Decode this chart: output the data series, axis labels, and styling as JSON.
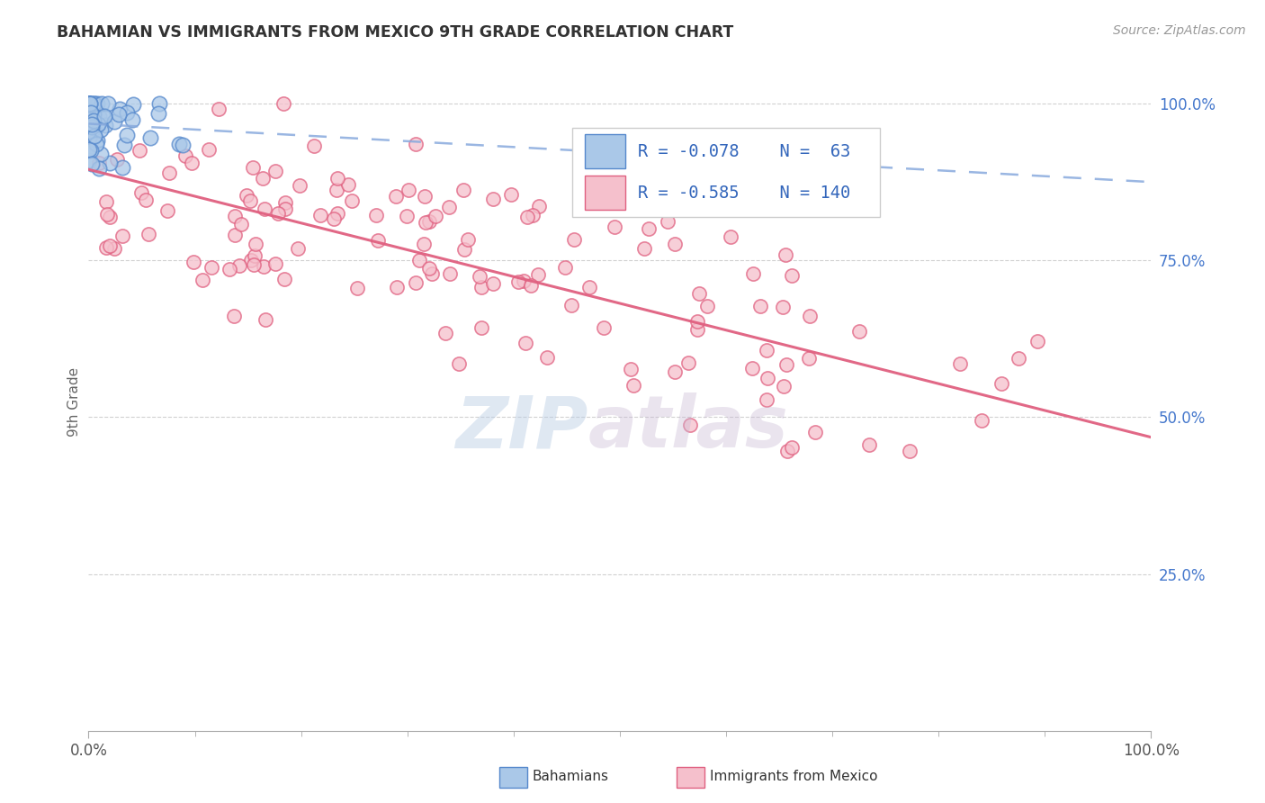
{
  "title": "BAHAMIAN VS IMMIGRANTS FROM MEXICO 9TH GRADE CORRELATION CHART",
  "source": "Source: ZipAtlas.com",
  "ylabel": "9th Grade",
  "xlim": [
    0.0,
    1.0
  ],
  "ylim": [
    0.0,
    1.05
  ],
  "bahamian_color": "#aac8e8",
  "bahamian_edge_color": "#5588cc",
  "mexico_color": "#f5c0cc",
  "mexico_edge_color": "#e06080",
  "bahamian_line_color": "#88aadd",
  "mexico_line_color": "#e06080",
  "legend_R_bahamian": "-0.078",
  "legend_N_bahamian": "63",
  "legend_R_mexico": "-0.585",
  "legend_N_mexico": "140",
  "background_color": "#ffffff",
  "title_color": "#333333",
  "axis_color": "#aaaaaa",
  "grid_color": "#cccccc",
  "right_tick_color": "#4477cc",
  "bahamian_N": 63,
  "mexico_N": 140,
  "seed_bahamian": 42,
  "seed_mexico": 7,
  "bah_trend_y0": 0.968,
  "bah_trend_y1": 0.875,
  "mex_trend_y0": 0.895,
  "mex_trend_y1": 0.468
}
